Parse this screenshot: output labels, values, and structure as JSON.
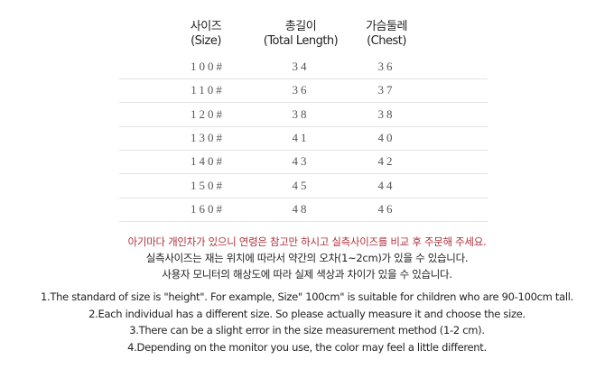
{
  "table": {
    "header": [
      [
        "사이즈",
        "(Size)"
      ],
      [
        "총길이",
        "(Total Length)"
      ],
      [
        "가슴둘레",
        "(Chest)"
      ]
    ],
    "rows": [
      [
        "100#",
        34,
        36
      ],
      [
        "110#",
        36,
        37
      ],
      [
        "120#",
        38,
        38
      ],
      [
        "130#",
        41,
        40
      ],
      [
        "140#",
        43,
        42
      ],
      [
        "150#",
        45,
        44
      ],
      [
        "160#",
        48,
        46
      ]
    ]
  },
  "notes_ko": [
    "아기마다 개인차가 있으니 연령은 참고만 하시고 실측사이즈를 비교 후 주문해 주세요.",
    "실측사이즈는 재는 위치에 따라서 약간의  오차(1~2cm)가 있을 수 있습니다.",
    "사용자 모니터의 해상도에 따라 실제 색상과 차이가 있을 수 있습니다."
  ],
  "notes_en": [
    "1.The standard of size is \"height\". For example,  Size\" 100cm\" is suitable for children who are 90-100cm tall.",
    "2.Each individual has a different size. So please actually measure it and choose the size.",
    "3.There can be a slight error in the size measurement method (1-2 cm).",
    "4.Depending on the monitor you use, the color may feel a little different."
  ]
}
